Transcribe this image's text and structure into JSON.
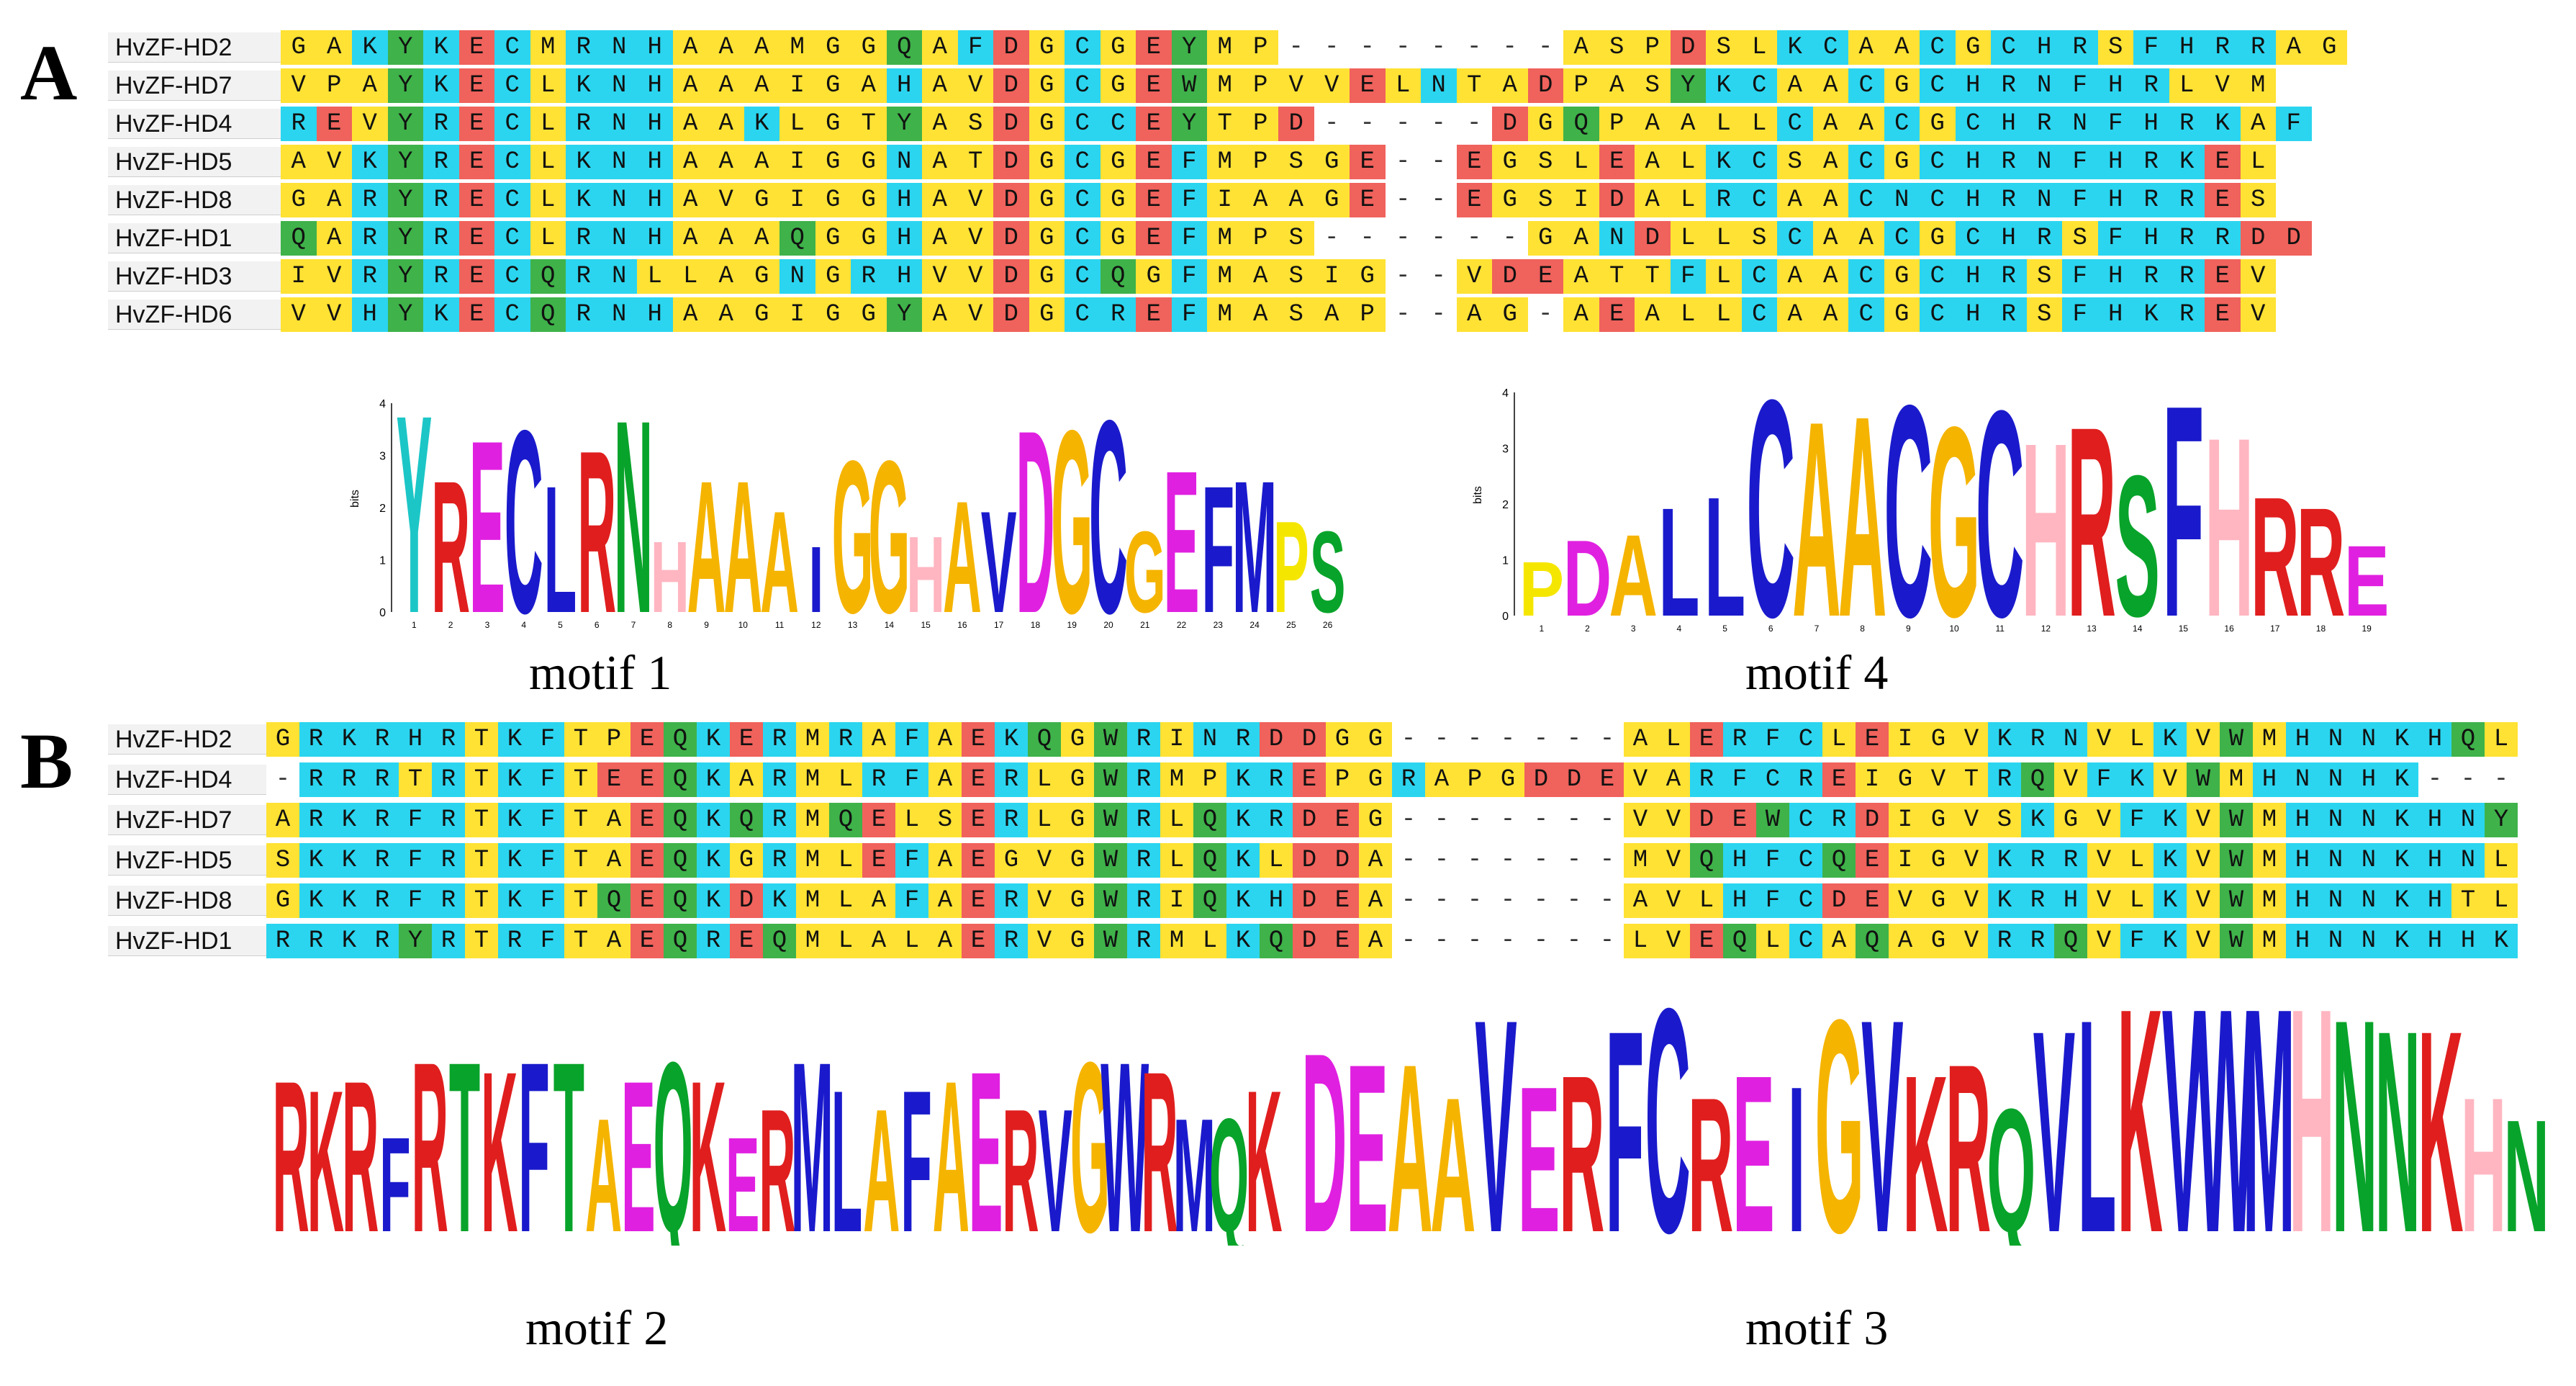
{
  "panels": {
    "a_label": "A",
    "b_label": "B"
  },
  "colors": {
    "A": "#ffe234",
    "G": "#ffe234",
    "S": "#ffe234",
    "C": "#2bd5ef",
    "K": "#2bd5ef",
    "N": "#2bd5ef",
    "E": "#f0625c",
    "D": "#f0625c",
    "R": "#2bd5ef",
    "Y": "#3fb24a",
    "W": "#3fb24a",
    "F": "#2bd5ef",
    "V": "#ffe234",
    "I": "#ffe234",
    "L": "#ffe234",
    "M": "#ffe234",
    "H": "#2bd5ef",
    "P": "#ffe234",
    "Q": "#3fb24a",
    "T": "#ffe234"
  },
  "alignment_a": {
    "rows": [
      {
        "name": "HvZF-HD2",
        "seq": "GAKYKECMRNHAAAMGGQAFDGCGEYMP--------ASPDSLKCAACGCHRSFHRRAG"
      },
      {
        "name": "HvZF-HD7",
        "seq": "VPAYKECLKNHAAAIGAHAVDGCGEWMPVVELNTADPASYKCAACGCHRNFHRLVM"
      },
      {
        "name": "HvZF-HD4",
        "seq": "REVYRECLRNHAAKLGTYASDGCCEYTPD-----DGQPAALLCAACGCHRNFHRKAF"
      },
      {
        "name": "HvZF-HD5",
        "seq": "AVKYRECLKNHAAAIGGNATDGCGEFMPSGE--EGSLEALKCSACGCHRNFHRKEL"
      },
      {
        "name": "HvZF-HD8",
        "seq": "GARYRECLKNHAVGIGGHAVDGCGEFIAAGE--EGSIDALRCAACNCHRNFHRRES"
      },
      {
        "name": "HvZF-HD1",
        "seq": "QARYRECLRNHAAAQGGHAVDGCGEFMPS------GANDLLSCAACGCHRSFHRRDD"
      },
      {
        "name": "HvZF-HD3",
        "seq": "IVRYRECQRNLLAGNGRHVVDGCQGFMASIG--VDEATTFLCAACGCHRSFHRREV"
      },
      {
        "name": "HvZF-HD6",
        "seq": "VVHYKECQRNHAAGIGGYAVDGCREFMASAP--AG-AEALLCAACGCHRSFHKREV"
      }
    ]
  },
  "alignment_b": {
    "rows": [
      {
        "name": "HvZF-HD2",
        "seq": "GRKRHRTKFTPEQKERMRAFAEKQGWRINRDDGG-------ALERFCLEIGVKRNVLKVWMHNNKHQL"
      },
      {
        "name": "HvZF-HD4",
        "seq": "-RRRTRTKFTEEQKARMLRFAERLGWRMPKREPGRAPGDDEVARFCREIGVTRQVFKVWMHNNHK---"
      },
      {
        "name": "HvZF-HD7",
        "seq": "ARKRFRTKFTAEQKQRMQELSERLGWRLQKRDEG-------VVDEWCRDIGVSKGVFKVWMHNNKHNY"
      },
      {
        "name": "HvZF-HD5",
        "seq": "SKKRFRTKFTAEQKGRMLEFAEGVGWRLQKLDDA-------MVQHFCQEIGVKRRVLKVWMHNNKHNL"
      },
      {
        "name": "HvZF-HD8",
        "seq": "GKKRFRTKFTQEQKDKMLAFAERVGWRIQKHDEA-------AVLHFCDEVGVKRHVLKVWMHNNKHTL"
      },
      {
        "name": "HvZF-HD1",
        "seq": "RRKRYRTRFTAEQREQMLALAERVGWRMLKQDEA-------LVEQLCAQAGVRRQVFKVWMHNNKHHK"
      }
    ]
  },
  "motifs": {
    "motif1": {
      "caption": "motif 1",
      "consensus": [
        "Y",
        "R",
        "E",
        "C",
        "L",
        "R",
        "N",
        "H",
        "A",
        "A",
        "A",
        "I",
        "G",
        "G",
        "H",
        "A",
        "V",
        "D",
        "G",
        "C",
        "G",
        "E",
        "F",
        "M",
        "P",
        "S"
      ],
      "heights": [
        3.9,
        2.6,
        3.4,
        3.6,
        2.5,
        3.2,
        3.8,
        1.4,
        2.6,
        2.6,
        2.0,
        1.3,
        3.0,
        3.0,
        1.5,
        2.2,
        2.0,
        3.6,
        3.6,
        3.8,
        1.6,
        2.8,
        2.5,
        2.6,
        1.8,
        1.6
      ],
      "ylabel": "bits",
      "yticks": [
        "4",
        "3",
        "2",
        "1",
        "0"
      ]
    },
    "motif4": {
      "caption": "motif 4",
      "consensus": [
        "P",
        "D",
        "A",
        "L",
        "L",
        "C",
        "A",
        "A",
        "C",
        "G",
        "C",
        "H",
        "R",
        "S",
        "F",
        "H",
        "R",
        "R",
        "E"
      ],
      "heights": [
        1.0,
        1.4,
        1.5,
        2.0,
        2.2,
        4.0,
        3.6,
        3.7,
        3.9,
        3.5,
        3.8,
        3.2,
        3.5,
        2.6,
        3.9,
        3.3,
        2.2,
        2.0,
        1.3
      ],
      "ylabel": "bits",
      "yticks": [
        "4",
        "3",
        "2",
        "1",
        "0"
      ]
    },
    "motif2": {
      "caption": "motif 2",
      "consensus": [
        "R",
        "K",
        "R",
        "F",
        "R",
        "T",
        "K",
        "F",
        "T",
        "A",
        "E",
        "Q",
        "K",
        "E",
        "R",
        "M",
        "L",
        "A",
        "F",
        "A",
        "E",
        "R",
        "V",
        "G",
        "W",
        "R",
        "M",
        "Q",
        "K"
      ],
      "heights": [
        1.6,
        1.5,
        1.6,
        1.0,
        1.8,
        1.8,
        1.7,
        1.8,
        1.8,
        1.2,
        1.6,
        1.8,
        1.6,
        1.0,
        1.3,
        1.8,
        1.5,
        1.3,
        1.5,
        1.6,
        1.7,
        1.3,
        1.3,
        1.8,
        1.8,
        1.7,
        1.2,
        1.2,
        1.5
      ]
    },
    "motif3": {
      "caption": "motif 3",
      "consensus": [
        "D",
        "E",
        "A",
        "A",
        "V",
        "E",
        "R",
        "F",
        "C",
        "R",
        "E",
        "I",
        "G",
        "V",
        "K",
        "R",
        "Q",
        "V",
        "L",
        "K",
        "V",
        "W",
        "M",
        "H",
        "N",
        "N",
        "K",
        "H",
        "N"
      ],
      "heights": [
        1.6,
        1.5,
        1.5,
        1.2,
        1.9,
        1.3,
        1.4,
        1.8,
        2.0,
        1.2,
        1.4,
        1.3,
        1.9,
        1.9,
        1.4,
        1.5,
        1.1,
        1.8,
        1.9,
        2.0,
        2.0,
        2.0,
        2.0,
        2.0,
        1.9,
        1.8,
        1.8,
        1.2,
        1.0
      ]
    },
    "motif2_caption": "motif 2",
    "motif3_caption": "motif 3"
  }
}
